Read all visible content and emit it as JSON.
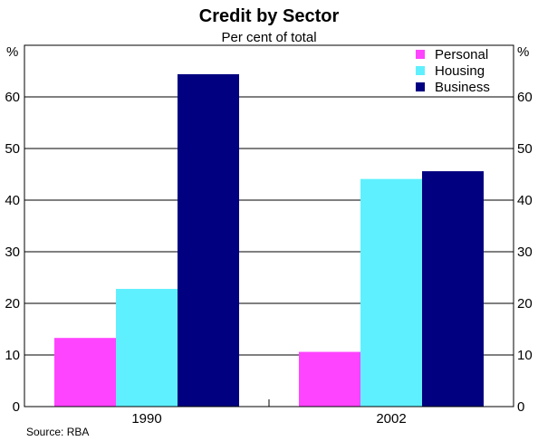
{
  "chart_data": {
    "type": "bar",
    "title": "Credit by Sector",
    "subtitle": "Per cent of total",
    "unit_left": "%",
    "unit_right": "%",
    "categories": [
      "1990",
      "2002"
    ],
    "series": [
      {
        "name": "Personal",
        "color": "#ff44ff",
        "values": [
          13.3,
          10.6
        ]
      },
      {
        "name": "Housing",
        "color": "#5ff0ff",
        "values": [
          22.8,
          44.1
        ]
      },
      {
        "name": "Business",
        "color": "#000080",
        "values": [
          64.4,
          45.6
        ]
      }
    ],
    "ylim": [
      0,
      70
    ],
    "yticks": [
      "0",
      "10",
      "20",
      "30",
      "40",
      "50",
      "60"
    ],
    "grid": true,
    "legend_position": "top-right",
    "source": "Source: RBA"
  }
}
